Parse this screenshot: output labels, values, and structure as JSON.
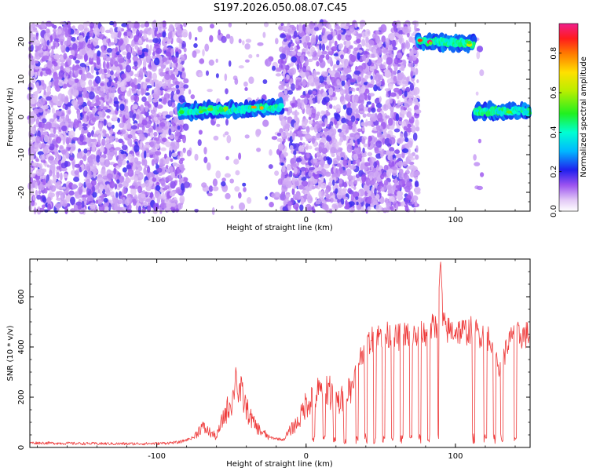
{
  "title": "S197.2026.050.08.07.C45",
  "chart_data": [
    {
      "type": "heatmap",
      "name": "spectrogram",
      "xlabel": "Height of straight line (km)",
      "ylabel": "Frequency (Hz)",
      "xlim": [
        -185,
        150
      ],
      "ylim": [
        -25,
        25
      ],
      "xticks": [
        -100,
        0,
        100
      ],
      "xtick_labels": [
        "-100",
        "0",
        "100"
      ],
      "yticks": [
        -20,
        -10,
        0,
        10,
        20
      ],
      "ytick_labels": [
        "-20",
        "-10",
        "0",
        "10",
        "20"
      ],
      "noise_regions": [
        [
          -185,
          -81
        ],
        [
          -17,
          75
        ]
      ],
      "sparse_regions": [
        [
          -81,
          -17
        ],
        [
          113,
          118
        ]
      ],
      "bands": [
        {
          "x": [
            -85,
            -16
          ],
          "freq_start": 1.5,
          "freq_end": 2.5,
          "peak": 0.85
        },
        {
          "x": [
            75,
            113
          ],
          "freq_start": 20,
          "freq_end": 19.5,
          "peak": 1.0
        },
        {
          "x": [
            113,
            150
          ],
          "freq_start": 1.5,
          "freq_end": 1.5,
          "peak": 0.6
        }
      ],
      "colorbar": {
        "label": "Normalized spectral amplitude",
        "range": [
          0,
          0.95
        ],
        "ticks": [
          0.0,
          0.2,
          0.4,
          0.6,
          0.8
        ],
        "tick_labels": [
          "0.0",
          "0.2",
          "0.4",
          "0.6",
          "0.8"
        ]
      }
    },
    {
      "type": "line",
      "name": "snr",
      "xlabel": "Height of straight line (km)",
      "ylabel": "SNR (10 * v/v)",
      "xlim": [
        -185,
        150
      ],
      "ylim": [
        0,
        750
      ],
      "xticks": [
        -100,
        0,
        100
      ],
      "xtick_labels": [
        "-100",
        "0",
        "100"
      ],
      "yticks": [
        0,
        200,
        400,
        600
      ],
      "ytick_labels": [
        "0",
        "200",
        "400",
        "600"
      ],
      "series": [
        {
          "name": "SNR",
          "color": "#ee3a3a",
          "x": [
            -185,
            -150,
            -120,
            -100,
            -85,
            -75,
            -70,
            -65,
            -60,
            -55,
            -50,
            -45,
            -40,
            -35,
            -30,
            -25,
            -20,
            -15,
            -10,
            -5,
            0,
            5,
            10,
            15,
            20,
            25,
            30,
            35,
            40,
            45,
            50,
            55,
            60,
            65,
            70,
            75,
            80,
            85,
            90,
            95,
            100,
            105,
            110,
            115,
            120,
            125,
            130,
            135,
            140,
            145,
            150
          ],
          "y": [
            18,
            15,
            14,
            15,
            20,
            40,
            80,
            60,
            40,
            120,
            180,
            230,
            150,
            90,
            60,
            40,
            35,
            30,
            70,
            100,
            170,
            200,
            210,
            230,
            170,
            180,
            230,
            340,
            400,
            430,
            440,
            440,
            430,
            440,
            440,
            435,
            450,
            470,
            490,
            460,
            460,
            455,
            460,
            450,
            440,
            420,
            300,
            410,
            440,
            440,
            445
          ]
        }
      ],
      "dropout_positions": [
        5,
        12,
        19,
        26,
        34,
        40,
        46,
        52,
        58,
        64,
        70,
        76,
        82,
        89,
        112,
        120,
        126,
        131,
        140
      ],
      "spikes": [
        {
          "x": -47,
          "y": 330
        },
        {
          "x": 90,
          "y": 750
        }
      ]
    }
  ]
}
